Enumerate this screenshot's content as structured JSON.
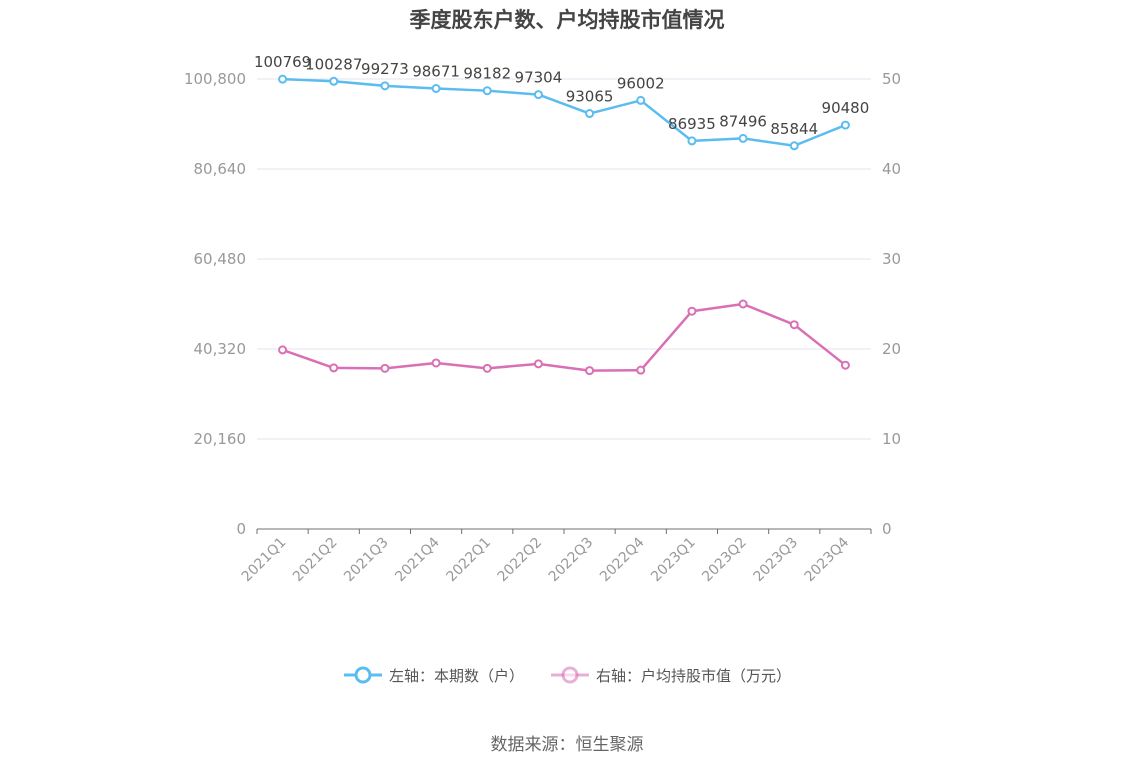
{
  "chart_data": {
    "type": "line",
    "title": "季度股东户数、户均持股市值情况",
    "categories": [
      "2021Q1",
      "2021Q2",
      "2021Q3",
      "2021Q4",
      "2022Q1",
      "2022Q2",
      "2022Q3",
      "2022Q4",
      "2023Q1",
      "2023Q2",
      "2023Q3",
      "2023Q4"
    ],
    "series": [
      {
        "name": "左轴：本期数（户）",
        "axis": "left",
        "color": "#5bbcf0",
        "values": [
          100769,
          100287,
          99273,
          98671,
          98182,
          97304,
          93065,
          96002,
          86935,
          87496,
          85844,
          90480
        ],
        "data_labels": [
          "100769",
          "100287",
          "99273",
          "98671",
          "98182",
          "97304",
          "93065",
          "96002",
          "86935",
          "87496",
          "85844",
          "90480"
        ]
      },
      {
        "name": "右轴：户均持股市值（万元）",
        "axis": "right",
        "color": "#d96fb4",
        "values": [
          19.9,
          17.9,
          17.85,
          18.45,
          17.85,
          18.35,
          17.6,
          17.65,
          24.2,
          25.0,
          22.7,
          18.2
        ]
      }
    ],
    "left_axis": {
      "min": 0,
      "max": 100800,
      "ticks": [
        0,
        20160,
        40320,
        60480,
        80640,
        100800
      ],
      "tick_labels": [
        "0",
        "20,160",
        "40,320",
        "60,480",
        "80,640",
        "100,800"
      ]
    },
    "right_axis": {
      "min": 0,
      "max": 50,
      "ticks": [
        0,
        10,
        20,
        30,
        40,
        50
      ],
      "tick_labels": [
        "0",
        "10",
        "20",
        "30",
        "40",
        "50"
      ]
    },
    "grid": true,
    "legend_position": "bottom"
  },
  "source": "数据来源：恒生聚源"
}
